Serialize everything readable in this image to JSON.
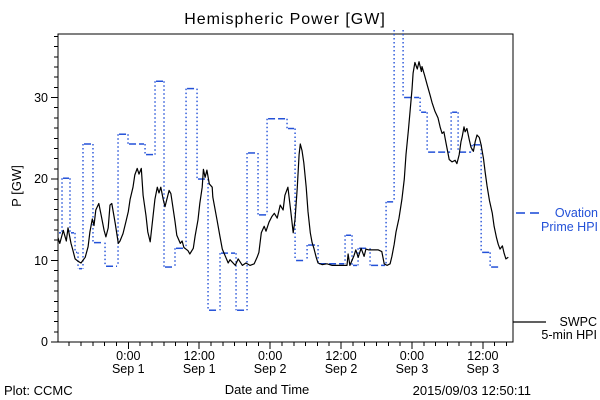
{
  "footer": {
    "credit": "Plot: CCMC",
    "timestamp": "2015/09/03 12:50:11"
  },
  "legend": {
    "ovation_line1": "Ovation",
    "ovation_line2": "Prime HPI",
    "swpc_line1": "SWPC",
    "swpc_line2": "5-min HPI"
  },
  "colors": {
    "ovation_blue": "#2351d8",
    "swpc_black": "#000000",
    "background": "#ffffff"
  },
  "chart_data": {
    "type": "line",
    "title": "Hemispheric Power [GW]",
    "xlabel": "Date and Time",
    "ylabel": "P [GW]",
    "grid": false,
    "legend_position": "right-outside",
    "x_axis": {
      "unit": "hours from left edge of plot (plot spans ~Aug 31 12:00 to Sep 3 17:00)",
      "range_hours": [
        0,
        77
      ],
      "minor_step_hours": 2,
      "ticks": [
        {
          "hour": 11.9,
          "time": "0:00",
          "date": "Sep 1"
        },
        {
          "hour": 23.9,
          "time": "12:00",
          "date": "Sep 1"
        },
        {
          "hour": 35.9,
          "time": "0:00",
          "date": "Sep 2"
        },
        {
          "hour": 47.9,
          "time": "12:00",
          "date": "Sep 2"
        },
        {
          "hour": 59.9,
          "time": "0:00",
          "date": "Sep 3"
        },
        {
          "hour": 71.9,
          "time": "12:00",
          "date": "Sep 3"
        }
      ]
    },
    "y_axis": {
      "range": [
        0,
        37.8
      ],
      "ticks": [
        0,
        10,
        20,
        30
      ],
      "minor_step": 1.25
    },
    "series": [
      {
        "name": "SWPC 5-min HPI",
        "style": "solid",
        "color": "#000000",
        "points": [
          [
            0,
            12.8
          ],
          [
            0.3,
            12.1
          ],
          [
            0.9,
            13.7
          ],
          [
            1.4,
            12.4
          ],
          [
            1.7,
            14.0
          ],
          [
            2.2,
            12.1
          ],
          [
            2.5,
            11.3
          ],
          [
            2.9,
            10.2
          ],
          [
            3.4,
            9.9
          ],
          [
            3.9,
            9.7
          ],
          [
            4.2,
            10.0
          ],
          [
            4.6,
            10.4
          ],
          [
            5.1,
            11.7
          ],
          [
            5.4,
            13.5
          ],
          [
            5.8,
            15.1
          ],
          [
            6.1,
            14.3
          ],
          [
            6.4,
            16.2
          ],
          [
            6.9,
            17.0
          ],
          [
            7.3,
            15.6
          ],
          [
            7.8,
            13.7
          ],
          [
            8.1,
            12.9
          ],
          [
            8.5,
            14.0
          ],
          [
            8.8,
            16.8
          ],
          [
            9.1,
            17.0
          ],
          [
            9.7,
            14.5
          ],
          [
            10.2,
            12.1
          ],
          [
            10.5,
            12.4
          ],
          [
            11.0,
            13.3
          ],
          [
            11.5,
            14.8
          ],
          [
            11.9,
            16.0
          ],
          [
            12.2,
            17.5
          ],
          [
            12.7,
            19.0
          ],
          [
            13.0,
            20.5
          ],
          [
            13.4,
            21.3
          ],
          [
            13.7,
            20.6
          ],
          [
            14.1,
            21.3
          ],
          [
            14.4,
            18.0
          ],
          [
            14.9,
            15.5
          ],
          [
            15.2,
            13.5
          ],
          [
            15.6,
            12.3
          ],
          [
            16.1,
            15.5
          ],
          [
            16.4,
            17.5
          ],
          [
            16.8,
            19.0
          ],
          [
            17.1,
            18.3
          ],
          [
            17.4,
            19.0
          ],
          [
            17.8,
            17.5
          ],
          [
            18.1,
            16.6
          ],
          [
            18.8,
            18.6
          ],
          [
            19.1,
            18.2
          ],
          [
            19.8,
            14.8
          ],
          [
            20.1,
            13.1
          ],
          [
            20.7,
            12.1
          ],
          [
            21.0,
            12.4
          ],
          [
            21.3,
            11.6
          ],
          [
            22.0,
            11.2
          ],
          [
            22.3,
            10.8
          ],
          [
            22.9,
            11.5
          ],
          [
            23.2,
            13.0
          ],
          [
            23.7,
            15.0
          ],
          [
            24.0,
            17.0
          ],
          [
            24.4,
            19.0
          ],
          [
            24.6,
            21.2
          ],
          [
            24.9,
            20.2
          ],
          [
            25.2,
            21.1
          ],
          [
            25.6,
            19.4
          ],
          [
            26.1,
            19.0
          ],
          [
            26.2,
            17.8
          ],
          [
            26.9,
            15.0
          ],
          [
            27.4,
            13.0
          ],
          [
            27.8,
            11.4
          ],
          [
            28.4,
            10.4
          ],
          [
            28.8,
            9.7
          ],
          [
            29.1,
            10.1
          ],
          [
            30.0,
            9.4
          ],
          [
            30.5,
            10.2
          ],
          [
            31.2,
            9.4
          ],
          [
            31.8,
            9.7
          ],
          [
            32.5,
            9.4
          ],
          [
            33.2,
            9.6
          ],
          [
            33.7,
            10.4
          ],
          [
            34.0,
            11.0
          ],
          [
            34.4,
            13.4
          ],
          [
            34.9,
            14.2
          ],
          [
            35.2,
            13.6
          ],
          [
            35.7,
            14.7
          ],
          [
            36.2,
            15.4
          ],
          [
            36.6,
            15.8
          ],
          [
            37.1,
            15.2
          ],
          [
            37.6,
            16.8
          ],
          [
            38.1,
            16.2
          ],
          [
            38.4,
            18.0
          ],
          [
            38.9,
            19.0
          ],
          [
            39.4,
            16.0
          ],
          [
            39.8,
            13.4
          ],
          [
            40.1,
            15.0
          ],
          [
            40.5,
            19.0
          ],
          [
            40.8,
            23.0
          ],
          [
            41.0,
            24.3
          ],
          [
            41.3,
            23.5
          ],
          [
            41.6,
            22.0
          ],
          [
            42.0,
            19.0
          ],
          [
            42.3,
            16.0
          ],
          [
            42.7,
            13.4
          ],
          [
            43.0,
            12.2
          ],
          [
            43.3,
            11.5
          ],
          [
            43.7,
            10.4
          ],
          [
            44.0,
            9.7
          ],
          [
            44.7,
            9.5
          ],
          [
            45.5,
            9.6
          ],
          [
            46.4,
            9.4
          ],
          [
            47.4,
            9.4
          ],
          [
            48.2,
            9.4
          ],
          [
            48.9,
            9.4
          ],
          [
            49.1,
            10.8
          ],
          [
            49.4,
            9.4
          ],
          [
            50.1,
            10.6
          ],
          [
            50.4,
            11.3
          ],
          [
            50.8,
            10.4
          ],
          [
            51.3,
            11.5
          ],
          [
            51.8,
            10.5
          ],
          [
            52.1,
            11.4
          ],
          [
            52.6,
            11.3
          ],
          [
            53.3,
            11.3
          ],
          [
            54.2,
            11.3
          ],
          [
            54.8,
            11.1
          ],
          [
            55.2,
            9.6
          ],
          [
            55.7,
            9.4
          ],
          [
            56.2,
            9.6
          ],
          [
            56.5,
            10.5
          ],
          [
            56.9,
            12.0
          ],
          [
            57.2,
            13.5
          ],
          [
            57.7,
            15.2
          ],
          [
            58.2,
            17.5
          ],
          [
            58.6,
            20.0
          ],
          [
            58.9,
            23.0
          ],
          [
            59.3,
            26.0
          ],
          [
            59.6,
            28.5
          ],
          [
            59.9,
            31.0
          ],
          [
            60.1,
            33.0
          ],
          [
            60.4,
            34.3
          ],
          [
            60.8,
            33.5
          ],
          [
            61.1,
            34.4
          ],
          [
            61.5,
            33.2
          ],
          [
            61.6,
            33.8
          ],
          [
            62.0,
            32.8
          ],
          [
            62.5,
            31.5
          ],
          [
            63.0,
            30.2
          ],
          [
            63.3,
            29.4
          ],
          [
            63.8,
            28.3
          ],
          [
            64.3,
            27.5
          ],
          [
            64.7,
            26.3
          ],
          [
            65.0,
            25.6
          ],
          [
            65.3,
            25.8
          ],
          [
            65.7,
            24.3
          ],
          [
            66.2,
            22.4
          ],
          [
            66.7,
            22.1
          ],
          [
            67.2,
            22.3
          ],
          [
            67.5,
            21.9
          ],
          [
            67.9,
            23.0
          ],
          [
            68.2,
            24.6
          ],
          [
            68.4,
            25.2
          ],
          [
            68.7,
            26.4
          ],
          [
            68.9,
            25.8
          ],
          [
            69.2,
            26.2
          ],
          [
            69.6,
            24.8
          ],
          [
            69.9,
            23.9
          ],
          [
            70.3,
            23.4
          ],
          [
            70.6,
            24.6
          ],
          [
            70.9,
            25.4
          ],
          [
            71.3,
            25.1
          ],
          [
            71.6,
            24.2
          ],
          [
            72.0,
            22.5
          ],
          [
            72.3,
            20.8
          ],
          [
            72.6,
            19.2
          ],
          [
            73.0,
            17.4
          ],
          [
            73.5,
            15.8
          ],
          [
            73.8,
            14.2
          ],
          [
            74.2,
            12.8
          ],
          [
            74.5,
            12.0
          ],
          [
            74.8,
            11.4
          ],
          [
            75.2,
            11.8
          ],
          [
            75.5,
            10.9
          ],
          [
            75.8,
            10.2
          ],
          [
            76.2,
            10.4
          ]
        ]
      },
      {
        "name": "Ovation Prime HPI",
        "style": "stepped (dashed levels, dotted connectors)",
        "color": "#2351d8",
        "steps": [
          [
            0,
            0.68,
            13.4
          ],
          [
            0.68,
            2.03,
            20.1
          ],
          [
            2.03,
            2.88,
            13.4
          ],
          [
            2.88,
            3.39,
            11.0
          ],
          [
            3.39,
            4.23,
            9.0
          ],
          [
            4.23,
            5.92,
            24.3
          ],
          [
            5.92,
            7.96,
            12.2
          ],
          [
            7.96,
            10.16,
            9.3
          ],
          [
            10.16,
            11.85,
            25.5
          ],
          [
            11.85,
            14.73,
            24.3
          ],
          [
            14.73,
            16.42,
            23.0
          ],
          [
            16.42,
            17.94,
            32.0
          ],
          [
            17.94,
            19.8,
            9.2
          ],
          [
            19.8,
            21.67,
            11.5
          ],
          [
            21.67,
            23.53,
            31.1
          ],
          [
            23.53,
            25.39,
            20.0
          ],
          [
            25.39,
            27.42,
            3.9
          ],
          [
            27.42,
            30.13,
            10.9
          ],
          [
            30.13,
            31.99,
            3.9
          ],
          [
            31.99,
            33.85,
            23.2
          ],
          [
            33.85,
            35.38,
            15.6
          ],
          [
            35.38,
            38.76,
            27.4
          ],
          [
            38.76,
            40.12,
            26.2
          ],
          [
            40.12,
            42.15,
            10.0
          ],
          [
            42.15,
            44.01,
            11.9
          ],
          [
            44.01,
            48.58,
            9.6
          ],
          [
            48.58,
            49.76,
            13.1
          ],
          [
            49.76,
            50.78,
            9.4
          ],
          [
            50.78,
            52.81,
            11.5
          ],
          [
            52.81,
            55.52,
            9.4
          ],
          [
            55.52,
            56.88,
            17.2
          ],
          [
            56.88,
            58.4,
            38.8
          ],
          [
            58.4,
            61.28,
            30.0
          ],
          [
            61.28,
            62.47,
            28.2
          ],
          [
            62.47,
            66.53,
            23.3
          ],
          [
            66.53,
            67.71,
            28.2
          ],
          [
            67.71,
            70.08,
            23.3
          ],
          [
            70.08,
            71.61,
            24.2
          ],
          [
            71.61,
            73.13,
            11.0
          ],
          [
            73.13,
            75.16,
            9.2
          ]
        ]
      }
    ]
  }
}
